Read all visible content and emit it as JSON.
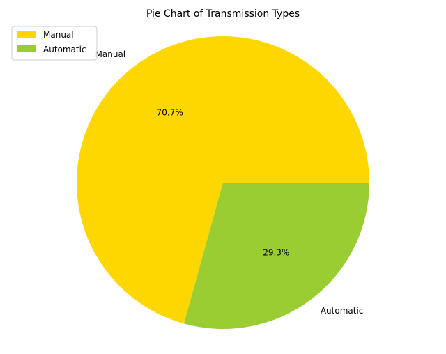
{
  "chart_data": {
    "type": "pie",
    "title": "Pie Chart of Transmission Types",
    "categories": [
      "Manual",
      "Automatic"
    ],
    "values": [
      70.7,
      29.3
    ],
    "value_labels": [
      "70.7%",
      "29.3%"
    ],
    "colors": [
      "#FFD700",
      "#9ACD32"
    ],
    "legend": {
      "position": "top-left",
      "entries": [
        "Manual",
        "Automatic"
      ]
    }
  }
}
